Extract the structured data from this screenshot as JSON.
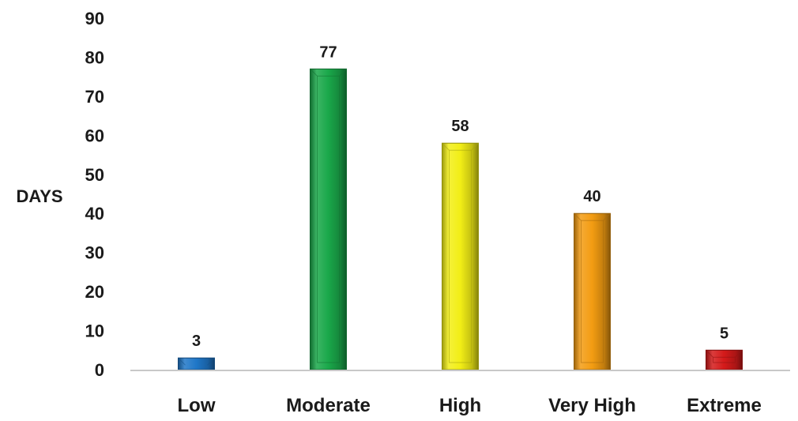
{
  "chart_data": {
    "type": "bar",
    "title": "",
    "xlabel": "",
    "ylabel": "DAYS",
    "ylim": [
      0,
      90
    ],
    "ytick_step": 10,
    "yticks": [
      "0",
      "10",
      "20",
      "30",
      "40",
      "50",
      "60",
      "70",
      "80",
      "90"
    ],
    "grid": false,
    "legend": "none",
    "categories": [
      "Low",
      "Moderate",
      "High",
      "Very High",
      "Extreme"
    ],
    "values": [
      3,
      77,
      58,
      40,
      5
    ],
    "data_labels": [
      "3",
      "77",
      "58",
      "40",
      "5"
    ],
    "colors": [
      "#1f77c8",
      "#1aa84a",
      "#f2ee16",
      "#f39c12",
      "#d41a1a"
    ],
    "axis_color": "#c8c8c8"
  }
}
